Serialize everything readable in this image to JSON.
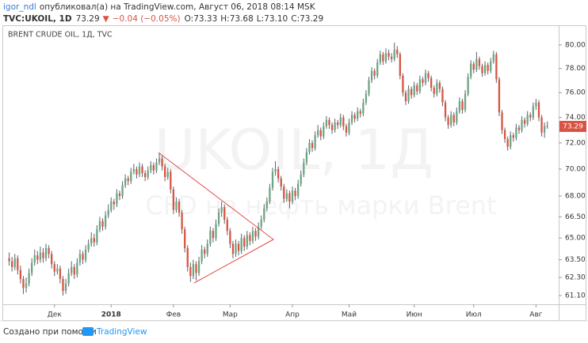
{
  "header": {
    "author": "igor_ndl",
    "published": "опубликовал(а) на TradingView.com, Август 06, 2018 08:14 MSK"
  },
  "chart_data": {
    "type": "candlestick",
    "symbol": "TVC:UKOIL, 1D",
    "last": "73.29",
    "arrow": "▼",
    "change": "−0.04 (−0.05%)",
    "ohlc_legend": [
      "O:73.33",
      "H:73.68",
      "L:73.10",
      "C:73.29"
    ],
    "title": "BRENT CRUDE OIL, 1Д, TVC",
    "watermark": "UKOIL, 1Д",
    "watermark_subtitle": "CFD на нефть марки Brent",
    "up_color": "#6ba583",
    "down_color": "#d75442",
    "wick_color": "#5d606b",
    "last_price_color": "#d75442",
    "log_scale": true,
    "grid": false,
    "ylim": [
      60.53,
      81.5
    ],
    "yticks": [
      {
        "value": 61.1,
        "label": "61.10"
      },
      {
        "value": 62.3,
        "label": "62.30"
      },
      {
        "value": 63.5,
        "label": "63.50"
      },
      {
        "value": 65,
        "label": "65.00"
      },
      {
        "value": 66.5,
        "label": "66.50"
      },
      {
        "value": 68,
        "label": "68.00"
      },
      {
        "value": 70,
        "label": "70.00"
      },
      {
        "value": 72,
        "label": "72.00"
      },
      {
        "value": 74,
        "label": "74.00"
      },
      {
        "value": 76,
        "label": "76.00"
      },
      {
        "value": 78,
        "label": "78.00"
      },
      {
        "value": 80,
        "label": "80.00"
      }
    ],
    "xlim": [
      -1,
      194
    ],
    "xticks": [
      {
        "value": 16,
        "label": "Дек"
      },
      {
        "value": 36,
        "label": "2018"
      },
      {
        "value": 58,
        "label": "Фев"
      },
      {
        "value": 78,
        "label": "Мар"
      },
      {
        "value": 100,
        "label": "Апр"
      },
      {
        "value": 120,
        "label": "Май"
      },
      {
        "value": 143,
        "label": "Июн"
      },
      {
        "value": 164,
        "label": "Июл"
      },
      {
        "value": 186,
        "label": "Авг"
      }
    ],
    "ohlc": [
      [
        63.6,
        64.0,
        63.1,
        63.4
      ],
      [
        63.4,
        63.7,
        62.7,
        63.0
      ],
      [
        63.0,
        63.9,
        62.8,
        63.6
      ],
      [
        63.6,
        63.8,
        62.5,
        62.8
      ],
      [
        62.8,
        63.1,
        61.9,
        62.2
      ],
      [
        62.2,
        62.4,
        61.2,
        61.6
      ],
      [
        61.6,
        62.3,
        61.3,
        61.9
      ],
      [
        61.9,
        62.9,
        61.7,
        62.6
      ],
      [
        62.6,
        63.6,
        62.4,
        63.3
      ],
      [
        63.3,
        64.2,
        63.1,
        63.8
      ],
      [
        63.8,
        64.1,
        63.2,
        63.5
      ],
      [
        63.5,
        64.4,
        63.3,
        64.0
      ],
      [
        64.0,
        64.3,
        63.3,
        63.6
      ],
      [
        63.6,
        64.6,
        63.4,
        64.3
      ],
      [
        64.3,
        64.5,
        63.6,
        63.9
      ],
      [
        63.9,
        64.1,
        62.9,
        63.2
      ],
      [
        63.2,
        63.4,
        62.4,
        62.7
      ],
      [
        62.7,
        63.2,
        62.5,
        62.9
      ],
      [
        62.9,
        63.1,
        61.9,
        62.2
      ],
      [
        62.2,
        62.4,
        61.1,
        61.4
      ],
      [
        61.4,
        62.2,
        61.2,
        61.9
      ],
      [
        61.9,
        62.9,
        61.7,
        62.6
      ],
      [
        62.6,
        63.4,
        62.4,
        63.0
      ],
      [
        63.0,
        63.2,
        62.2,
        62.5
      ],
      [
        62.5,
        63.6,
        62.3,
        63.3
      ],
      [
        63.3,
        64.2,
        63.1,
        63.9
      ],
      [
        63.9,
        64.1,
        63.2,
        63.5
      ],
      [
        63.5,
        64.5,
        63.3,
        64.2
      ],
      [
        64.2,
        64.9,
        64.0,
        64.6
      ],
      [
        64.6,
        65.4,
        64.4,
        65.0
      ],
      [
        65.0,
        65.3,
        64.4,
        64.7
      ],
      [
        64.7,
        65.9,
        64.5,
        65.6
      ],
      [
        65.6,
        66.5,
        65.4,
        66.2
      ],
      [
        66.2,
        66.4,
        65.5,
        65.8
      ],
      [
        65.8,
        66.9,
        65.6,
        66.6
      ],
      [
        66.6,
        67.4,
        66.4,
        67.0
      ],
      [
        67.0,
        67.9,
        66.8,
        67.6
      ],
      [
        67.6,
        67.8,
        67.0,
        67.4
      ],
      [
        67.4,
        68.5,
        67.2,
        68.2
      ],
      [
        68.2,
        68.4,
        67.7,
        68.0
      ],
      [
        68.0,
        69.1,
        67.8,
        68.8
      ],
      [
        68.8,
        69.6,
        68.6,
        69.3
      ],
      [
        69.3,
        69.5,
        68.8,
        69.1
      ],
      [
        69.1,
        70.1,
        68.9,
        69.8
      ],
      [
        69.8,
        70.4,
        69.6,
        70.0
      ],
      [
        70.0,
        70.2,
        69.3,
        69.6
      ],
      [
        69.6,
        70.5,
        69.4,
        70.2
      ],
      [
        70.2,
        70.4,
        69.4,
        69.7
      ],
      [
        69.7,
        69.9,
        69.1,
        69.4
      ],
      [
        69.4,
        70.2,
        69.2,
        69.9
      ],
      [
        69.9,
        70.6,
        69.7,
        70.3
      ],
      [
        70.3,
        70.5,
        69.6,
        69.9
      ],
      [
        69.9,
        70.8,
        69.7,
        70.5
      ],
      [
        70.5,
        71.2,
        70.3,
        70.8
      ],
      [
        70.8,
        71.0,
        69.9,
        70.2
      ],
      [
        70.2,
        70.4,
        69.1,
        69.4
      ],
      [
        69.4,
        70.1,
        69.2,
        69.8
      ],
      [
        69.8,
        70.0,
        68.2,
        68.5
      ],
      [
        68.5,
        68.7,
        66.7,
        67.0
      ],
      [
        67.0,
        67.9,
        66.8,
        67.6
      ],
      [
        67.6,
        67.8,
        66.5,
        66.8
      ],
      [
        66.8,
        67.0,
        65.3,
        65.6
      ],
      [
        65.6,
        65.8,
        64.0,
        64.3
      ],
      [
        64.3,
        64.5,
        62.7,
        63.0
      ],
      [
        63.0,
        63.3,
        62.0,
        62.4
      ],
      [
        62.4,
        63.5,
        62.2,
        63.2
      ],
      [
        63.2,
        63.4,
        62.1,
        62.6
      ],
      [
        62.6,
        63.7,
        62.4,
        63.4
      ],
      [
        63.4,
        64.5,
        63.2,
        64.2
      ],
      [
        64.2,
        64.4,
        63.6,
        63.9
      ],
      [
        63.9,
        64.9,
        63.7,
        64.6
      ],
      [
        64.6,
        65.8,
        64.4,
        65.5
      ],
      [
        65.5,
        65.7,
        64.7,
        65.0
      ],
      [
        65.0,
        66.3,
        64.8,
        66.0
      ],
      [
        66.0,
        67.1,
        65.8,
        66.8
      ],
      [
        66.8,
        67.6,
        66.5,
        67.2
      ],
      [
        67.2,
        67.4,
        66.0,
        66.3
      ],
      [
        66.3,
        66.5,
        65.2,
        65.5
      ],
      [
        65.5,
        65.7,
        64.3,
        64.6
      ],
      [
        64.6,
        64.8,
        63.6,
        63.9
      ],
      [
        63.9,
        64.9,
        63.7,
        64.6
      ],
      [
        64.6,
        64.8,
        63.8,
        64.1
      ],
      [
        64.1,
        65.3,
        63.9,
        65.0
      ],
      [
        65.0,
        65.2,
        64.1,
        64.4
      ],
      [
        64.4,
        65.5,
        64.2,
        65.2
      ],
      [
        65.2,
        65.4,
        64.5,
        64.8
      ],
      [
        64.8,
        65.8,
        64.6,
        65.5
      ],
      [
        65.5,
        65.7,
        64.8,
        65.1
      ],
      [
        65.1,
        66.1,
        64.9,
        65.8
      ],
      [
        65.8,
        66.6,
        65.6,
        66.3
      ],
      [
        66.3,
        67.4,
        66.1,
        67.1
      ],
      [
        67.1,
        67.9,
        66.9,
        67.6
      ],
      [
        67.6,
        68.9,
        67.4,
        68.6
      ],
      [
        68.6,
        70.1,
        68.4,
        69.8
      ],
      [
        69.8,
        70.6,
        69.5,
        70.0
      ],
      [
        70.0,
        70.2,
        69.0,
        69.3
      ],
      [
        69.3,
        69.5,
        68.4,
        68.7
      ],
      [
        68.7,
        68.9,
        67.5,
        67.8
      ],
      [
        67.8,
        68.5,
        67.6,
        68.2
      ],
      [
        68.2,
        68.4,
        67.1,
        67.6
      ],
      [
        67.6,
        68.7,
        67.4,
        68.4
      ],
      [
        68.4,
        68.6,
        67.7,
        68.0
      ],
      [
        68.0,
        69.2,
        67.8,
        68.9
      ],
      [
        68.9,
        69.9,
        68.7,
        69.6
      ],
      [
        69.6,
        70.8,
        69.4,
        70.5
      ],
      [
        70.5,
        71.6,
        70.3,
        71.3
      ],
      [
        71.3,
        72.3,
        71.1,
        72.0
      ],
      [
        72.0,
        72.2,
        71.3,
        71.6
      ],
      [
        71.6,
        72.9,
        71.4,
        72.6
      ],
      [
        72.6,
        73.4,
        72.4,
        73.0
      ],
      [
        73.0,
        73.2,
        72.2,
        72.5
      ],
      [
        72.5,
        73.6,
        72.3,
        73.3
      ],
      [
        73.3,
        74.1,
        73.1,
        73.8
      ],
      [
        73.8,
        74.0,
        73.1,
        73.4
      ],
      [
        73.4,
        73.6,
        72.7,
        73.0
      ],
      [
        73.0,
        73.9,
        72.8,
        73.6
      ],
      [
        73.6,
        73.8,
        73.1,
        73.4
      ],
      [
        73.4,
        74.3,
        73.2,
        74.0
      ],
      [
        74.0,
        74.2,
        73.0,
        73.3
      ],
      [
        73.3,
        73.5,
        72.5,
        72.8
      ],
      [
        72.8,
        73.9,
        72.6,
        73.6
      ],
      [
        73.6,
        74.5,
        73.4,
        74.2
      ],
      [
        74.2,
        74.4,
        73.6,
        73.9
      ],
      [
        73.9,
        74.8,
        73.7,
        74.5
      ],
      [
        74.5,
        74.7,
        74.0,
        74.3
      ],
      [
        74.3,
        75.5,
        74.1,
        75.2
      ],
      [
        75.2,
        76.2,
        75.0,
        75.9
      ],
      [
        75.9,
        77.3,
        75.7,
        77.0
      ],
      [
        77.0,
        78.1,
        76.8,
        77.8
      ],
      [
        77.8,
        78.0,
        77.1,
        77.4
      ],
      [
        77.4,
        78.8,
        77.2,
        78.5
      ],
      [
        78.5,
        79.5,
        78.3,
        79.2
      ],
      [
        79.2,
        79.4,
        78.3,
        78.6
      ],
      [
        78.6,
        79.7,
        78.4,
        79.3
      ],
      [
        79.3,
        79.6,
        78.7,
        79.0
      ],
      [
        79.0,
        79.3,
        78.5,
        78.8
      ],
      [
        78.8,
        80.2,
        78.6,
        79.6
      ],
      [
        79.6,
        79.9,
        78.9,
        79.2
      ],
      [
        79.2,
        79.4,
        77.1,
        77.4
      ],
      [
        77.4,
        77.6,
        75.7,
        76.0
      ],
      [
        76.0,
        76.2,
        75.0,
        75.3
      ],
      [
        75.3,
        76.6,
        75.1,
        76.3
      ],
      [
        76.3,
        76.5,
        75.5,
        75.8
      ],
      [
        75.8,
        76.9,
        75.6,
        76.6
      ],
      [
        76.6,
        76.8,
        75.8,
        76.1
      ],
      [
        76.1,
        77.4,
        75.9,
        77.1
      ],
      [
        77.1,
        77.3,
        76.5,
        76.8
      ],
      [
        76.8,
        77.9,
        76.6,
        77.6
      ],
      [
        77.6,
        77.8,
        76.9,
        77.2
      ],
      [
        77.2,
        77.4,
        76.1,
        76.4
      ],
      [
        76.4,
        76.6,
        75.6,
        75.9
      ],
      [
        75.9,
        77.1,
        75.7,
        76.8
      ],
      [
        76.8,
        77.0,
        76.0,
        76.3
      ],
      [
        76.3,
        76.5,
        74.9,
        75.2
      ],
      [
        75.2,
        75.4,
        73.7,
        74.0
      ],
      [
        74.0,
        74.2,
        73.1,
        73.4
      ],
      [
        73.4,
        74.5,
        73.2,
        74.2
      ],
      [
        74.2,
        74.4,
        73.3,
        73.6
      ],
      [
        73.6,
        74.8,
        73.4,
        74.5
      ],
      [
        74.5,
        75.6,
        74.3,
        75.3
      ],
      [
        75.3,
        75.5,
        74.3,
        74.6
      ],
      [
        74.6,
        76.2,
        74.4,
        75.9
      ],
      [
        75.9,
        77.6,
        75.7,
        77.3
      ],
      [
        77.3,
        78.7,
        77.1,
        78.4
      ],
      [
        78.4,
        78.6,
        77.6,
        77.9
      ],
      [
        77.9,
        79.4,
        77.7,
        78.8
      ],
      [
        78.8,
        79.0,
        77.9,
        78.2
      ],
      [
        78.2,
        78.4,
        77.3,
        77.6
      ],
      [
        77.6,
        78.6,
        77.4,
        78.3
      ],
      [
        78.3,
        78.5,
        77.5,
        77.8
      ],
      [
        77.8,
        78.9,
        77.6,
        78.6
      ],
      [
        78.6,
        79.5,
        78.4,
        79.2
      ],
      [
        79.2,
        79.4,
        76.8,
        77.1
      ],
      [
        77.1,
        77.3,
        74.1,
        74.4
      ],
      [
        74.4,
        74.6,
        72.7,
        73.0
      ],
      [
        73.0,
        73.2,
        72.0,
        72.3
      ],
      [
        72.3,
        72.5,
        71.4,
        71.7
      ],
      [
        71.7,
        72.9,
        71.5,
        72.6
      ],
      [
        72.6,
        72.8,
        72.1,
        72.4
      ],
      [
        72.4,
        73.5,
        72.2,
        73.2
      ],
      [
        73.2,
        73.4,
        72.7,
        73.0
      ],
      [
        73.0,
        74.1,
        72.8,
        73.8
      ],
      [
        73.8,
        74.0,
        73.2,
        73.5
      ],
      [
        73.5,
        74.5,
        73.3,
        74.2
      ],
      [
        74.2,
        74.4,
        73.7,
        74.0
      ],
      [
        74.0,
        75.2,
        73.8,
        74.9
      ],
      [
        74.9,
        75.5,
        74.6,
        75.2
      ],
      [
        75.2,
        75.4,
        73.7,
        74.0
      ],
      [
        74.0,
        74.2,
        72.5,
        72.8
      ],
      [
        72.8,
        73.6,
        72.4,
        73.33
      ],
      [
        73.33,
        73.68,
        73.1,
        73.29
      ]
    ]
  },
  "footer": {
    "text": "Создано при помощи",
    "logo": "TradingView"
  }
}
